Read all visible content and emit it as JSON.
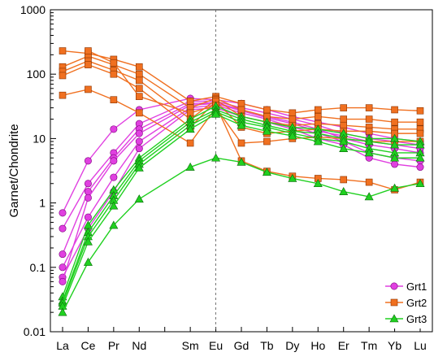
{
  "chart_data": {
    "type": "line",
    "ylabel": "Garnet/Chondrite",
    "yscale": "log",
    "ylim": [
      0.01,
      1000
    ],
    "y_ticks": [
      "0.01",
      "0.1",
      "1",
      "10",
      "100",
      "1000"
    ],
    "categories": [
      "La",
      "Ce",
      "Pr",
      "Nd",
      "",
      "Sm",
      "Eu",
      "Gd",
      "Tb",
      "Dy",
      "Ho",
      "Er",
      "Tm",
      "Yb",
      "Lu"
    ],
    "reference_line_at": "Eu",
    "legend_position": "bottom-right",
    "series": [
      {
        "name": "Grt1",
        "color": "#e040e0",
        "marker": "circle",
        "lines": [
          [
            0.7,
            4.5,
            14,
            28,
            null,
            42,
            40,
            35,
            28,
            22,
            18,
            15,
            12,
            10,
            9
          ],
          [
            0.4,
            2,
            6,
            17,
            null,
            38,
            38,
            30,
            25,
            20,
            16,
            12,
            10,
            9,
            8
          ],
          [
            0.16,
            1.5,
            5,
            14,
            null,
            35,
            36,
            28,
            22,
            18,
            14,
            10,
            8,
            7,
            6
          ],
          [
            0.1,
            0.6,
            2.5,
            9,
            null,
            30,
            33,
            25,
            20,
            15,
            12,
            9,
            6,
            5,
            4.5
          ],
          [
            0.07,
            0.4,
            1.5,
            7,
            null,
            28,
            30,
            22,
            18,
            14,
            10,
            8,
            5,
            4,
            3.6
          ],
          [
            0.06,
            1.2,
            4.5,
            12,
            null,
            33,
            35,
            27,
            21,
            17,
            13,
            11,
            9,
            8,
            7
          ]
        ]
      },
      {
        "name": "Grt2",
        "color": "#f07020",
        "marker": "square",
        "lines": [
          [
            230,
            210,
            170,
            130,
            null,
            38,
            45,
            35,
            28,
            25,
            28,
            30,
            30,
            28,
            27
          ],
          [
            130,
            190,
            140,
            100,
            null,
            30,
            42,
            28,
            22,
            20,
            22,
            20,
            20,
            18,
            18
          ],
          [
            110,
            160,
            115,
            80,
            null,
            20,
            40,
            22,
            18,
            16,
            17,
            16,
            15,
            14,
            14
          ],
          [
            95,
            140,
            100,
            60,
            null,
            15,
            38,
            15,
            12,
            13,
            14,
            13,
            13,
            12,
            12
          ],
          [
            47,
            58,
            40,
            25,
            null,
            8.5,
            30,
            8.5,
            9,
            10,
            10.5,
            10,
            9,
            9,
            9
          ],
          [
            null,
            230,
            150,
            45,
            null,
            25,
            33,
            4.5,
            3.1,
            2.6,
            2.4,
            2.3,
            2.1,
            1.6,
            2.1
          ]
        ]
      },
      {
        "name": "Grt3",
        "color": "#20d020",
        "marker": "triangle",
        "lines": [
          [
            0.035,
            0.45,
            1.6,
            5,
            null,
            20,
            32,
            22,
            18,
            15,
            14,
            12,
            10,
            10,
            9
          ],
          [
            0.03,
            0.35,
            1.3,
            4.5,
            null,
            18,
            28,
            20,
            16,
            13,
            12,
            10,
            9,
            8,
            8
          ],
          [
            0.028,
            0.3,
            1.1,
            4,
            null,
            16,
            26,
            18,
            15,
            12,
            10,
            9,
            7,
            6,
            6
          ],
          [
            0.025,
            0.25,
            0.9,
            3.5,
            null,
            14,
            24,
            16,
            13,
            11,
            9,
            7,
            6,
            5,
            5
          ],
          [
            0.02,
            0.12,
            0.45,
            1.15,
            null,
            3.6,
            5,
            4.3,
            3,
            2.4,
            2,
            1.5,
            1.25,
            1.7,
            2
          ]
        ]
      }
    ]
  }
}
